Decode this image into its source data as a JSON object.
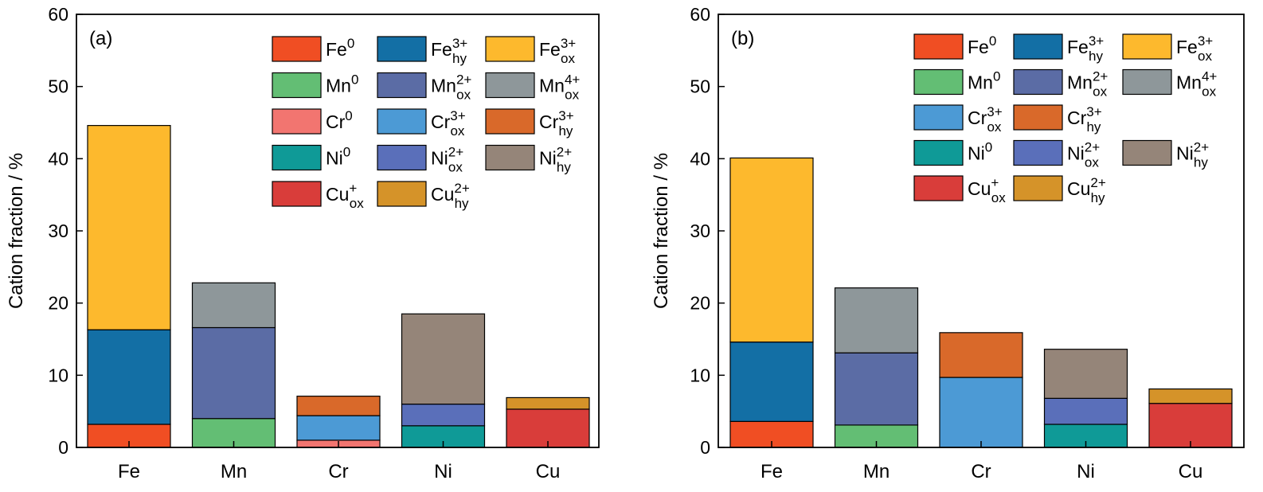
{
  "chart_data": [
    {
      "type": "bar",
      "stacked": true,
      "panel_label": "(a)",
      "categories": [
        "Fe",
        "Mn",
        "Cr",
        "Ni",
        "Cu"
      ],
      "ylabel": "Cation fraction / %",
      "ylim": [
        0,
        60
      ],
      "yticks": [
        0,
        10,
        20,
        30,
        40,
        50,
        60
      ],
      "legend": [
        [
          {
            "base": "Fe",
            "sup": "0",
            "sub": "",
            "color": "#F04E23"
          },
          {
            "base": "Fe",
            "sup": "3+",
            "sub": "hy",
            "color": "#136FA5"
          },
          {
            "base": "Fe",
            "sup": "3+",
            "sub": "ox",
            "color": "#FDB92D"
          }
        ],
        [
          {
            "base": "Mn",
            "sup": "0",
            "sub": "",
            "color": "#63BE74"
          },
          {
            "base": "Mn",
            "sup": "2+",
            "sub": "ox",
            "color": "#5B6CA5"
          },
          {
            "base": "Mn",
            "sup": "4+",
            "sub": "ox",
            "color": "#8E979A"
          }
        ],
        [
          {
            "base": "Cr",
            "sup": "0",
            "sub": "",
            "color": "#F27570"
          },
          {
            "base": "Cr",
            "sup": "3+",
            "sub": "ox",
            "color": "#4C9AD5"
          },
          {
            "base": "Cr",
            "sup": "3+",
            "sub": "hy",
            "color": "#D9692A"
          }
        ],
        [
          {
            "base": "Ni",
            "sup": "0",
            "sub": "",
            "color": "#0F9A97"
          },
          {
            "base": "Ni",
            "sup": "2+",
            "sub": "ox",
            "color": "#5A6FBA"
          },
          {
            "base": "Ni",
            "sup": "2+",
            "sub": "hy",
            "color": "#958579"
          }
        ],
        [
          {
            "base": "Cu",
            "sup": "+",
            "sub": "ox",
            "color": "#D93D3A"
          },
          {
            "base": "Cu",
            "sup": "2+",
            "sub": "hy",
            "color": "#D59329"
          }
        ]
      ],
      "bars": [
        [
          {
            "value": 3.2,
            "color": "#F04E23"
          },
          {
            "value": 13.1,
            "color": "#136FA5"
          },
          {
            "value": 28.3,
            "color": "#FDB92D"
          }
        ],
        [
          {
            "value": 4.0,
            "color": "#63BE74"
          },
          {
            "value": 12.6,
            "color": "#5B6CA5"
          },
          {
            "value": 6.2,
            "color": "#8E979A"
          }
        ],
        [
          {
            "value": 1.0,
            "color": "#F27570"
          },
          {
            "value": 3.4,
            "color": "#4C9AD5"
          },
          {
            "value": 2.7,
            "color": "#D9692A"
          }
        ],
        [
          {
            "value": 3.0,
            "color": "#0F9A97"
          },
          {
            "value": 3.0,
            "color": "#5A6FBA"
          },
          {
            "value": 12.5,
            "color": "#958579"
          }
        ],
        [
          {
            "value": 5.3,
            "color": "#D93D3A"
          },
          {
            "value": 1.6,
            "color": "#D59329"
          }
        ]
      ]
    },
    {
      "type": "bar",
      "stacked": true,
      "panel_label": "(b)",
      "categories": [
        "Fe",
        "Mn",
        "Cr",
        "Ni",
        "Cu"
      ],
      "ylabel": "Cation fraction / %",
      "ylim": [
        0,
        60
      ],
      "yticks": [
        0,
        10,
        20,
        30,
        40,
        50,
        60
      ],
      "legend": [
        [
          {
            "base": "Fe",
            "sup": "0",
            "sub": "",
            "color": "#F04E23"
          },
          {
            "base": "Fe",
            "sup": "3+",
            "sub": "hy",
            "color": "#136FA5"
          },
          {
            "base": "Fe",
            "sup": "3+",
            "sub": "ox",
            "color": "#FDB92D"
          }
        ],
        [
          {
            "base": "Mn",
            "sup": "0",
            "sub": "",
            "color": "#63BE74"
          },
          {
            "base": "Mn",
            "sup": "2+",
            "sub": "ox",
            "color": "#5B6CA5"
          },
          {
            "base": "Mn",
            "sup": "4+",
            "sub": "ox",
            "color": "#8E979A"
          }
        ],
        [
          {
            "base": "Cr",
            "sup": "3+",
            "sub": "ox",
            "color": "#4C9AD5"
          },
          {
            "base": "Cr",
            "sup": "3+",
            "sub": "hy",
            "color": "#D9692A"
          }
        ],
        [
          {
            "base": "Ni",
            "sup": "0",
            "sub": "",
            "color": "#0F9A97"
          },
          {
            "base": "Ni",
            "sup": "2+",
            "sub": "ox",
            "color": "#5A6FBA"
          },
          {
            "base": "Ni",
            "sup": "2+",
            "sub": "hy",
            "color": "#958579"
          }
        ],
        [
          {
            "base": "Cu",
            "sup": "+",
            "sub": "ox",
            "color": "#D93D3A"
          },
          {
            "base": "Cu",
            "sup": "2+",
            "sub": "hy",
            "color": "#D59329"
          }
        ]
      ],
      "bars": [
        [
          {
            "value": 3.6,
            "color": "#F04E23"
          },
          {
            "value": 11.0,
            "color": "#136FA5"
          },
          {
            "value": 25.5,
            "color": "#FDB92D"
          }
        ],
        [
          {
            "value": 3.1,
            "color": "#63BE74"
          },
          {
            "value": 10.0,
            "color": "#5B6CA5"
          },
          {
            "value": 9.0,
            "color": "#8E979A"
          }
        ],
        [
          {
            "value": 9.7,
            "color": "#4C9AD5"
          },
          {
            "value": 6.2,
            "color": "#D9692A"
          }
        ],
        [
          {
            "value": 3.2,
            "color": "#0F9A97"
          },
          {
            "value": 3.6,
            "color": "#5A6FBA"
          },
          {
            "value": 6.8,
            "color": "#958579"
          }
        ],
        [
          {
            "value": 6.1,
            "color": "#D93D3A"
          },
          {
            "value": 2.0,
            "color": "#D59329"
          }
        ]
      ]
    }
  ]
}
